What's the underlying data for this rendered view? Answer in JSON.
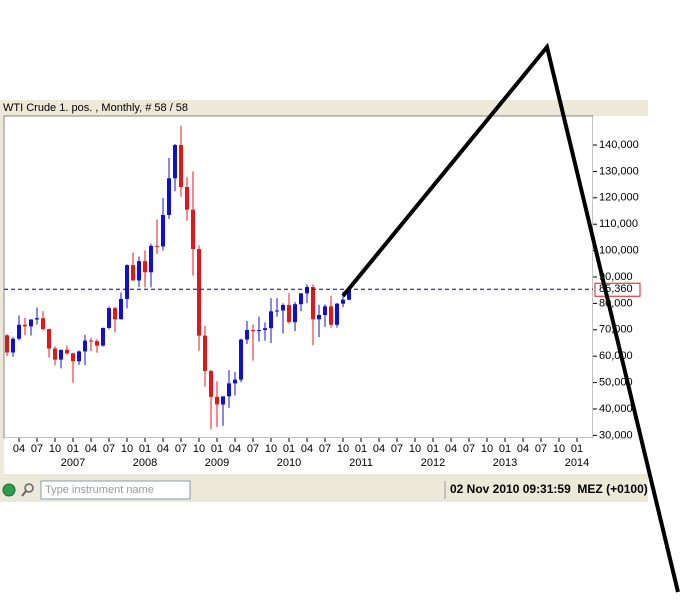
{
  "chart_data": {
    "type": "candlestick",
    "title": "WTI Crude 1. pos. , Monthly, # 58 / 58",
    "x": [
      "2006-02",
      "2006-03",
      "2006-04",
      "2006-05",
      "2006-06",
      "2006-07",
      "2006-08",
      "2006-09",
      "2006-10",
      "2006-11",
      "2006-12",
      "2007-01",
      "2007-02",
      "2007-03",
      "2007-04",
      "2007-05",
      "2007-06",
      "2007-07",
      "2007-08",
      "2007-09",
      "2007-10",
      "2007-11",
      "2007-12",
      "2008-01",
      "2008-02",
      "2008-03",
      "2008-04",
      "2008-05",
      "2008-06",
      "2008-07",
      "2008-08",
      "2008-09",
      "2008-10",
      "2008-11",
      "2008-12",
      "2009-01",
      "2009-02",
      "2009-03",
      "2009-04",
      "2009-05",
      "2009-06",
      "2009-07",
      "2009-08",
      "2009-09",
      "2009-10",
      "2009-11",
      "2009-12",
      "2010-01",
      "2010-02",
      "2010-03",
      "2010-04",
      "2010-05",
      "2010-06",
      "2010-07",
      "2010-08",
      "2010-09",
      "2010-10",
      "2010-11"
    ],
    "open": [
      67.9,
      61.4,
      66.6,
      71.9,
      71.3,
      73.9,
      74.4,
      70.3,
      62.9,
      58.7,
      62.4,
      61.1,
      58.1,
      61.8,
      65.9,
      65.7,
      64.0,
      70.7,
      78.2,
      74.0,
      81.7,
      94.5,
      88.7,
      96.0,
      91.8,
      101.8,
      101.6,
      113.5,
      127.4,
      140.0,
      124.1,
      115.5,
      100.6,
      67.8,
      54.4,
      44.6,
      41.7,
      44.8,
      49.7,
      51.1,
      66.3,
      69.9,
      69.5,
      69.9,
      70.6,
      77.0,
      77.3,
      79.4,
      72.9,
      79.7,
      83.8,
      86.2,
      74.0,
      75.6,
      78.9,
      71.9,
      79.9,
      81.4
    ],
    "high": [
      68.4,
      67.2,
      75.4,
      74.6,
      74.0,
      78.4,
      77.0,
      70.4,
      63.7,
      62.5,
      64.0,
      61.3,
      62.2,
      68.1,
      66.9,
      66.4,
      70.8,
      78.8,
      78.8,
      84.1,
      94.8,
      99.3,
      97.7,
      100.1,
      102.6,
      111.8,
      119.9,
      135.1,
      140.4,
      147.3,
      127.8,
      130.0,
      102.0,
      71.5,
      54.7,
      50.5,
      43.8,
      54.7,
      54.0,
      66.7,
      73.4,
      72.0,
      75.0,
      72.8,
      82.0,
      82.0,
      80.0,
      83.9,
      80.5,
      83.9,
      87.2,
      87.2,
      79.5,
      79.6,
      82.9,
      80.2,
      84.4,
      85.7
    ],
    "low": [
      60.0,
      59.8,
      66.0,
      68.0,
      67.8,
      72.0,
      69.8,
      59.5,
      56.6,
      55.4,
      60.5,
      49.9,
      56.7,
      56.6,
      61.9,
      61.3,
      63.6,
      70.2,
      69.0,
      73.9,
      78.1,
      88.6,
      86.2,
      86.1,
      86.1,
      98.7,
      100.0,
      112.0,
      122.5,
      120.4,
      111.3,
      90.5,
      62.0,
      48.5,
      32.4,
      33.2,
      33.6,
      40.4,
      45.1,
      50.1,
      64.6,
      58.3,
      65.5,
      65.9,
      65.0,
      75.0,
      68.6,
      72.4,
      69.5,
      77.1,
      80.1,
      64.2,
      67.2,
      71.1,
      70.8,
      70.8,
      78.6,
      81.2
    ],
    "close": [
      61.4,
      66.6,
      71.9,
      71.3,
      73.9,
      74.4,
      70.3,
      62.9,
      58.7,
      62.4,
      61.1,
      58.1,
      61.8,
      65.9,
      65.7,
      64.0,
      70.7,
      78.2,
      74.0,
      81.7,
      94.5,
      88.7,
      96.0,
      91.8,
      101.8,
      101.6,
      113.5,
      127.4,
      140.0,
      124.1,
      115.5,
      100.6,
      67.8,
      54.4,
      44.6,
      41.7,
      44.8,
      49.7,
      51.1,
      66.3,
      69.9,
      69.5,
      69.9,
      70.6,
      77.0,
      77.3,
      79.4,
      72.9,
      79.7,
      83.8,
      86.2,
      74.0,
      75.6,
      78.9,
      71.9,
      79.9,
      81.4,
      85.36
    ],
    "up_color": "#1010d0",
    "down_color": "#e01818",
    "xlim": [
      "2006-01",
      "2014-03"
    ],
    "xticks": [
      {
        "value": "2006-04",
        "label": "04"
      },
      {
        "value": "2006-07",
        "label": "07"
      },
      {
        "value": "2006-10",
        "label": "10"
      },
      {
        "value": "2007-01",
        "label": "01"
      },
      {
        "value": "2007-04",
        "label": "04"
      },
      {
        "value": "2007-07",
        "label": "07"
      },
      {
        "value": "2007-10",
        "label": "10"
      },
      {
        "value": "2008-01",
        "label": "01"
      },
      {
        "value": "2008-04",
        "label": "04"
      },
      {
        "value": "2008-07",
        "label": "07"
      },
      {
        "value": "2008-10",
        "label": "10"
      },
      {
        "value": "2009-01",
        "label": "01"
      },
      {
        "value": "2009-04",
        "label": "04"
      },
      {
        "value": "2009-07",
        "label": "07"
      },
      {
        "value": "2009-10",
        "label": "10"
      },
      {
        "value": "2010-01",
        "label": "01"
      },
      {
        "value": "2010-04",
        "label": "04"
      },
      {
        "value": "2010-07",
        "label": "07"
      },
      {
        "value": "2010-10",
        "label": "10"
      },
      {
        "value": "2011-01",
        "label": "01"
      },
      {
        "value": "2011-04",
        "label": "04"
      },
      {
        "value": "2011-07",
        "label": "07"
      },
      {
        "value": "2011-10",
        "label": "10"
      },
      {
        "value": "2012-01",
        "label": "01"
      },
      {
        "value": "2012-04",
        "label": "04"
      },
      {
        "value": "2012-07",
        "label": "07"
      },
      {
        "value": "2012-10",
        "label": "10"
      },
      {
        "value": "2013-01",
        "label": "01"
      },
      {
        "value": "2013-04",
        "label": "04"
      },
      {
        "value": "2013-07",
        "label": "07"
      },
      {
        "value": "2013-10",
        "label": "10"
      },
      {
        "value": "2014-01",
        "label": "01"
      }
    ],
    "year_ticks": [
      {
        "value": "2007-01",
        "label": "2007"
      },
      {
        "value": "2008-01",
        "label": "2008"
      },
      {
        "value": "2009-01",
        "label": "2009"
      },
      {
        "value": "2010-01",
        "label": "2010"
      },
      {
        "value": "2011-01",
        "label": "2011"
      },
      {
        "value": "2012-01",
        "label": "2012"
      },
      {
        "value": "2013-01",
        "label": "2013"
      },
      {
        "value": "2014-01",
        "label": "2014"
      }
    ],
    "ylim": [
      29,
      151
    ],
    "yticks": [
      {
        "value": 30,
        "label": "30,000"
      },
      {
        "value": 40,
        "label": "40,000"
      },
      {
        "value": 50,
        "label": "50,000"
      },
      {
        "value": 60,
        "label": "60,000"
      },
      {
        "value": 70,
        "label": "70,000"
      },
      {
        "value": 80,
        "label": "80,000"
      },
      {
        "value": 90,
        "label": "90,000"
      },
      {
        "value": 100,
        "label": "100,000"
      },
      {
        "value": 110,
        "label": "110,000"
      },
      {
        "value": 120,
        "label": "120,000"
      },
      {
        "value": 130,
        "label": "130,000"
      },
      {
        "value": 140,
        "label": "140,000"
      }
    ],
    "last_price": {
      "value": 85.36,
      "label": "85,360"
    }
  },
  "toolbar": {
    "search_placeholder": "Type instrument name",
    "status": "02 Nov 2010 09:31:59  MEZ (+0100)"
  }
}
